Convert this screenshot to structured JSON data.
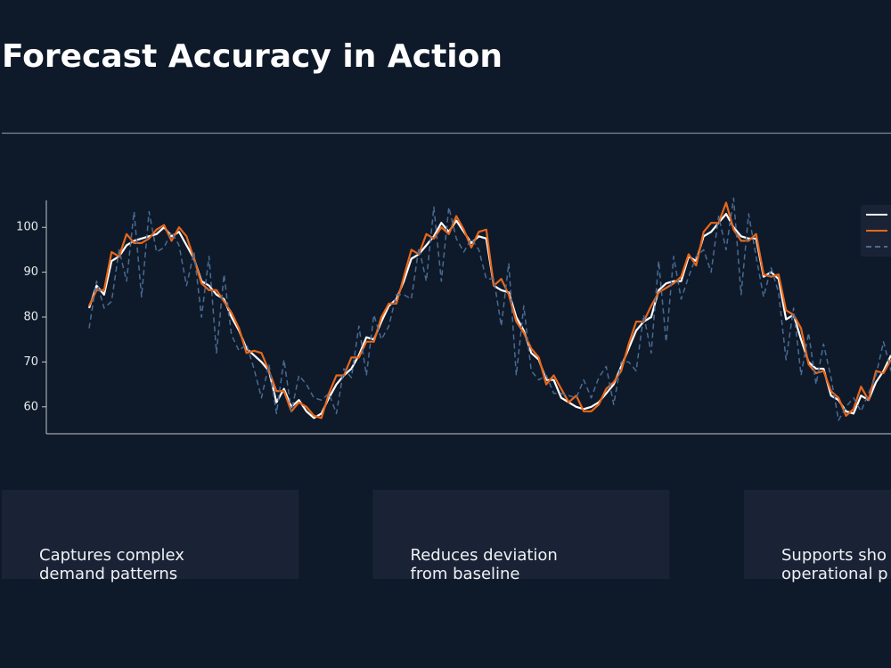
{
  "title": "Forecast Accuracy in Action",
  "chart_data": {
    "type": "line",
    "ylim": [
      54,
      106
    ],
    "yticks": [
      60,
      70,
      80,
      90,
      100
    ],
    "series": [
      {
        "color": "#ffffff",
        "linestyle": "solid",
        "values": [
          82,
          87,
          85,
          92.5,
          93.5,
          96,
          97,
          97.5,
          98,
          98.5,
          100,
          98,
          99,
          96,
          93,
          88,
          87,
          85,
          84,
          80,
          77,
          73,
          71.5,
          70,
          68,
          61,
          64,
          60,
          61.5,
          59,
          57.5,
          58.5,
          62,
          65,
          67,
          68.5,
          71.5,
          75.5,
          75,
          79,
          82.5,
          84,
          88,
          93,
          94,
          96,
          98,
          101,
          99,
          101.5,
          99,
          96.5,
          98,
          97.5,
          87,
          86,
          85.5,
          80,
          77,
          72,
          70.5,
          66,
          66,
          62,
          61,
          60,
          59.5,
          60,
          61,
          63,
          65,
          69,
          73,
          77,
          79,
          80,
          86,
          87.5,
          88,
          88,
          93.5,
          92.5,
          98,
          99,
          101,
          103,
          100,
          98,
          97.5,
          97.5,
          89,
          90,
          88.5,
          79.5,
          80.5,
          75,
          70,
          68.5,
          68.5,
          62.5,
          61.5,
          59,
          58.5,
          62.5,
          61.5,
          65.5,
          68,
          71.5
        ]
      },
      {
        "color": "#e8671b",
        "linestyle": "solid",
        "values": [
          82.5,
          86,
          86,
          94.5,
          93.5,
          98.5,
          96.5,
          96.5,
          97.5,
          99.5,
          100.5,
          97,
          100,
          98,
          93,
          87.5,
          86,
          86,
          83.5,
          81,
          77.5,
          72,
          72.5,
          72,
          68,
          63.5,
          63.5,
          59,
          61,
          60,
          58,
          57.5,
          63,
          67,
          67,
          71,
          71,
          74.5,
          74.5,
          80,
          83,
          83,
          89,
          95,
          94,
          98.5,
          97.5,
          100,
          98.5,
          102.5,
          99.5,
          95.5,
          99,
          99.5,
          87,
          88.5,
          85,
          79,
          76.5,
          73,
          71,
          65,
          67,
          64,
          61,
          62.5,
          59,
          59,
          60.5,
          64,
          65.5,
          68,
          74,
          79,
          79,
          82.5,
          85.5,
          86.5,
          87.5,
          89,
          94,
          91.5,
          99,
          101,
          101,
          105.5,
          99.5,
          97,
          97,
          98.5,
          89.5,
          89,
          89.5,
          81.5,
          80.5,
          77.5,
          69.5,
          67.5,
          68,
          63.5,
          62,
          58,
          59.5,
          64.5,
          61.5,
          68,
          67.5,
          70.5
        ]
      },
      {
        "color": "#4a6a94",
        "linestyle": "dashed",
        "values": [
          77.5,
          88,
          82,
          83.5,
          95,
          88,
          103.5,
          84.5,
          103.5,
          94.5,
          95.5,
          99,
          96,
          87,
          94.5,
          80,
          93.5,
          72,
          89.5,
          76,
          72.5,
          74,
          68.5,
          62,
          69.5,
          58.5,
          70.5,
          59,
          67,
          65,
          62,
          61.5,
          63,
          58.5,
          68.5,
          66.5,
          78,
          67,
          80.5,
          75,
          78,
          85,
          85,
          84,
          95.5,
          88,
          104.5,
          88,
          104.5,
          97.5,
          94.5,
          97.5,
          95,
          88.5,
          88.5,
          78,
          92,
          67,
          82.5,
          68,
          66,
          67,
          63,
          63,
          62.5,
          62,
          66,
          62,
          66.5,
          69,
          60.5,
          70,
          70,
          68,
          80.5,
          72,
          92.5,
          74.5,
          93.5,
          84,
          89,
          93.5,
          95,
          90,
          102.5,
          95,
          106.5,
          85,
          103,
          93.5,
          84.5,
          91,
          85.5,
          70.5,
          82,
          67,
          76.5,
          65,
          74,
          66.5,
          57,
          60,
          62,
          59,
          63,
          67,
          74.5,
          68
        ]
      }
    ]
  },
  "cards": [
    {
      "lines": [
        "Captures complex",
        "demand patterns"
      ]
    },
    {
      "lines": [
        "Reduces deviation",
        "from baseline"
      ]
    },
    {
      "lines": [
        "Supports sho",
        "operational p"
      ]
    }
  ]
}
